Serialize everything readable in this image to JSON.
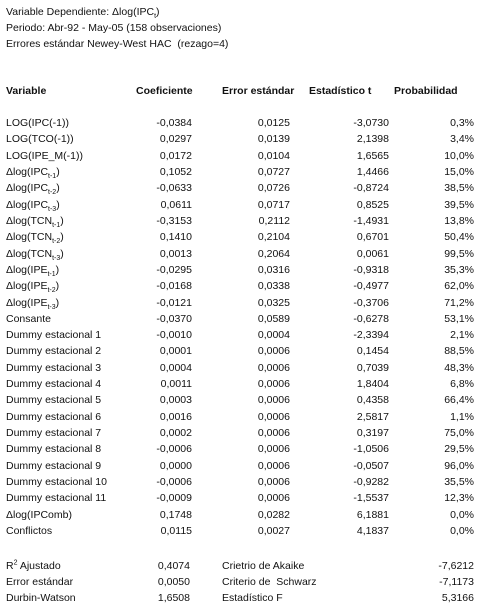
{
  "header": {
    "lines": [
      {
        "pre": "Variable Dependiente: Δlog(IPC",
        "sub": "t",
        "post": ")"
      },
      "Periodo: Abr-92 - May-05 (158 observaciones)",
      "Errores estándar Newey-West HAC  (rezago=4)"
    ]
  },
  "table": {
    "columns": [
      "Variable",
      "Coeficiente",
      "Error estándar",
      "Estadístico t",
      "Probabilidad"
    ],
    "rows": [
      [
        "LOG(IPC(-1))",
        "-0,0384",
        "0,0125",
        "-3,0730",
        "0,3%"
      ],
      [
        "LOG(TCO(-1))",
        "0,0297",
        "0,0139",
        "2,1398",
        "3,4%"
      ],
      [
        "LOG(IPE_M(-1))",
        "0,0172",
        "0,0104",
        "1,6565",
        "10,0%"
      ],
      [
        {
          "pre": "Δlog(IPC",
          "sub": "t-1",
          "post": ")"
        },
        "0,1052",
        "0,0727",
        "1,4466",
        "15,0%"
      ],
      [
        {
          "pre": "Δlog(IPC",
          "sub": "t-2",
          "post": ")"
        },
        "-0,0633",
        "0,0726",
        "-0,8724",
        "38,5%"
      ],
      [
        {
          "pre": "Δlog(IPC",
          "sub": "t-3",
          "post": ")"
        },
        "0,0611",
        "0,0717",
        "0,8525",
        "39,5%"
      ],
      [
        {
          "pre": "Δlog(TCN",
          "sub": "t-1",
          "post": ")"
        },
        "-0,3153",
        "0,2112",
        "-1,4931",
        "13,8%"
      ],
      [
        {
          "pre": "Δlog(TCN",
          "sub": "t-2",
          "post": ")"
        },
        "0,1410",
        "0,2104",
        "0,6701",
        "50,4%"
      ],
      [
        {
          "pre": "Δlog(TCN",
          "sub": "t-3",
          "post": ")"
        },
        "0,0013",
        "0,2064",
        "0,0061",
        "99,5%"
      ],
      [
        {
          "pre": "Δlog(IPE",
          "sub": "t-1",
          "post": ")"
        },
        "-0,0295",
        "0,0316",
        "-0,9318",
        "35,3%"
      ],
      [
        {
          "pre": "Δlog(IPE",
          "sub": "t-2",
          "post": ")"
        },
        "-0,0168",
        "0,0338",
        "-0,4977",
        "62,0%"
      ],
      [
        {
          "pre": "Δlog(IPE",
          "sub": "t-3",
          "post": ")"
        },
        "-0,0121",
        "0,0325",
        "-0,3706",
        "71,2%"
      ],
      [
        "Consante",
        "-0,0370",
        "0,0589",
        "-0,6278",
        "53,1%"
      ],
      [
        "Dummy estacional 1",
        "-0,0010",
        "0,0004",
        "-2,3394",
        "2,1%"
      ],
      [
        "Dummy estacional 2",
        "0,0001",
        "0,0006",
        "0,1454",
        "88,5%"
      ],
      [
        "Dummy estacional 3",
        "0,0004",
        "0,0006",
        "0,7039",
        "48,3%"
      ],
      [
        "Dummy estacional 4",
        "0,0011",
        "0,0006",
        "1,8404",
        "6,8%"
      ],
      [
        "Dummy estacional 5",
        "0,0003",
        "0,0006",
        "0,4358",
        "66,4%"
      ],
      [
        "Dummy estacional 6",
        "0,0016",
        "0,0006",
        "2,5817",
        "1,1%"
      ],
      [
        "Dummy estacional 7",
        "0,0002",
        "0,0006",
        "0,3197",
        "75,0%"
      ],
      [
        "Dummy estacional 8",
        "-0,0006",
        "0,0006",
        "-1,0506",
        "29,5%"
      ],
      [
        "Dummy estacional 9",
        "0,0000",
        "0,0006",
        "-0,0507",
        "96,0%"
      ],
      [
        "Dummy estacional 10",
        "-0,0006",
        "0,0006",
        "-0,9282",
        "35,5%"
      ],
      [
        "Dummy estacional 11",
        "-0,0009",
        "0,0006",
        "-1,5537",
        "12,3%"
      ],
      [
        "Δlog(IPComb)",
        "0,1748",
        "0,0282",
        "6,1881",
        "0,0%"
      ],
      [
        "Conflictos",
        "0,0115",
        "0,0027",
        "4,1837",
        "0,0%"
      ]
    ]
  },
  "stats": [
    [
      {
        "pre": "R",
        "sup": "2",
        "post": " Ajustado"
      },
      "0,4074",
      "Crietrio de Akaike",
      "-7,6212"
    ],
    [
      "Error estándar",
      "0,0050",
      "Criterio de  Schwarz",
      "-7,1173"
    ],
    [
      "Durbin-Watson",
      "1,6508",
      "Estadístico F",
      "5,3166"
    ]
  ]
}
